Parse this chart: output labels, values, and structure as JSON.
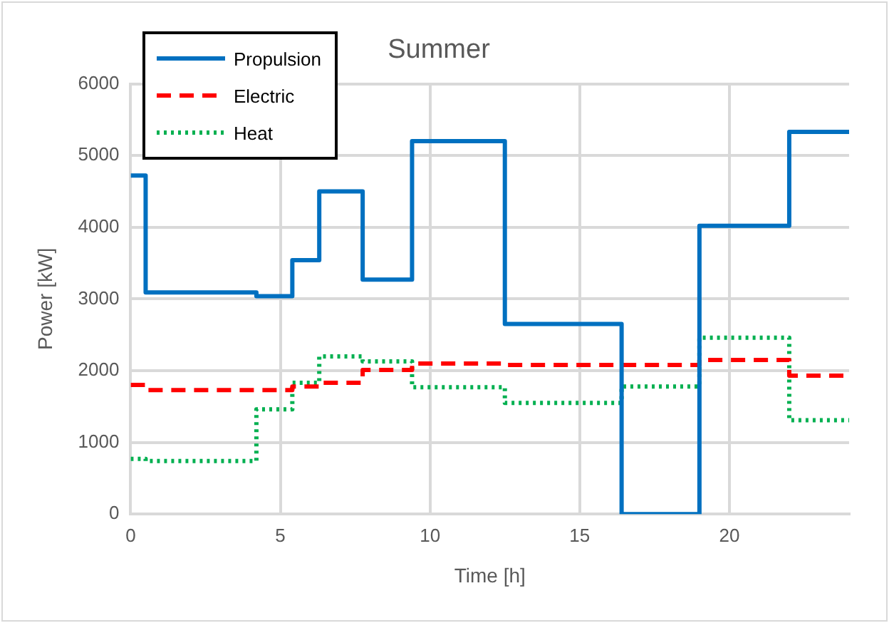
{
  "chart_data": {
    "type": "step",
    "title": "Summer",
    "xlabel": "Time [h]",
    "ylabel": "Power [kW]",
    "xlim": [
      0,
      24
    ],
    "xticks": [
      0,
      5,
      10,
      15,
      20
    ],
    "ylim": [
      0,
      6000
    ],
    "yticks": [
      0,
      1000,
      2000,
      3000,
      4000,
      5000,
      6000
    ],
    "grid": true,
    "legend": "top left",
    "marker": "none",
    "series": [
      {
        "name": "Propulsion",
        "color": "#0070c0",
        "line_style": "solid",
        "x": [
          0,
          0.5,
          4.2,
          5.4,
          6.3,
          7.75,
          9.4,
          12.5,
          16.4,
          19,
          22,
          24
        ],
        "values": [
          4720,
          3090,
          3040,
          3540,
          4500,
          3270,
          5200,
          2650,
          0,
          4020,
          5330,
          5330
        ]
      },
      {
        "name": "Electric",
        "color": "#ff0000",
        "line_style": "dashed",
        "x": [
          0,
          0.5,
          5.4,
          6.3,
          7.75,
          9.4,
          12.5,
          19,
          22,
          24
        ],
        "values": [
          1800,
          1730,
          1780,
          1830,
          2010,
          2100,
          2080,
          2150,
          1930,
          1930
        ]
      },
      {
        "name": "Heat",
        "color": "#00b050",
        "line_style": "dotted",
        "x": [
          0,
          0.5,
          4.2,
          5.4,
          6.3,
          7.75,
          9.4,
          12.5,
          16.4,
          19,
          22,
          24
        ],
        "values": [
          770,
          740,
          1460,
          1830,
          2200,
          2130,
          1770,
          1550,
          1780,
          2460,
          1310,
          1310
        ]
      }
    ]
  }
}
